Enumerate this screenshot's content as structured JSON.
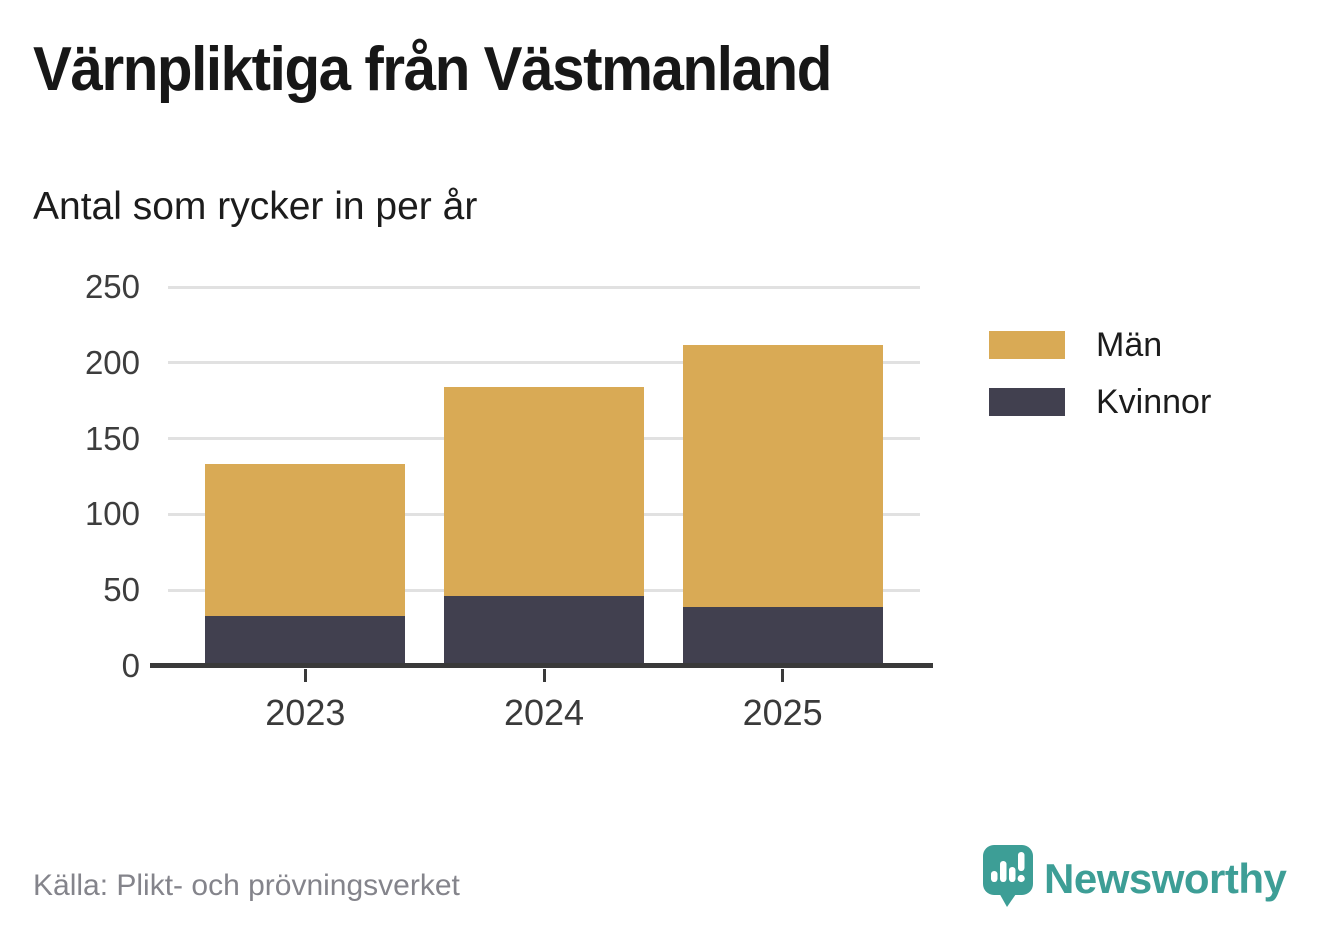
{
  "header": {
    "title": "Värnpliktiga från Västmanland",
    "subtitle": "Antal som rycker in per år"
  },
  "chart_data": {
    "type": "bar",
    "stacked": true,
    "title": "Värnpliktiga från Västmanland",
    "subtitle": "Antal som rycker in per år",
    "categories": [
      "2023",
      "2024",
      "2025"
    ],
    "series": [
      {
        "name": "Män",
        "color": "#d9aa55",
        "values": [
          100,
          138,
          173
        ]
      },
      {
        "name": "Kvinnor",
        "color": "#41404f",
        "values": [
          33,
          46,
          39
        ]
      }
    ],
    "totals": [
      133,
      184,
      212
    ],
    "ylim": [
      0,
      250
    ],
    "yticks": [
      0,
      50,
      100,
      150,
      200,
      250
    ],
    "grid": true,
    "legend_position": "right",
    "colors": {
      "gridline": "#e1e1e1",
      "axis": "#3a3a3a",
      "men": "#d9aa55",
      "women": "#41404f"
    }
  },
  "legend": {
    "items": [
      {
        "label": "Män",
        "color": "#d9aa55"
      },
      {
        "label": "Kvinnor",
        "color": "#41404f"
      }
    ]
  },
  "footer": {
    "source": "Källa: Plikt- och prövningsverket",
    "brand": "Newsworthy",
    "brand_color": "#3d9e96"
  }
}
